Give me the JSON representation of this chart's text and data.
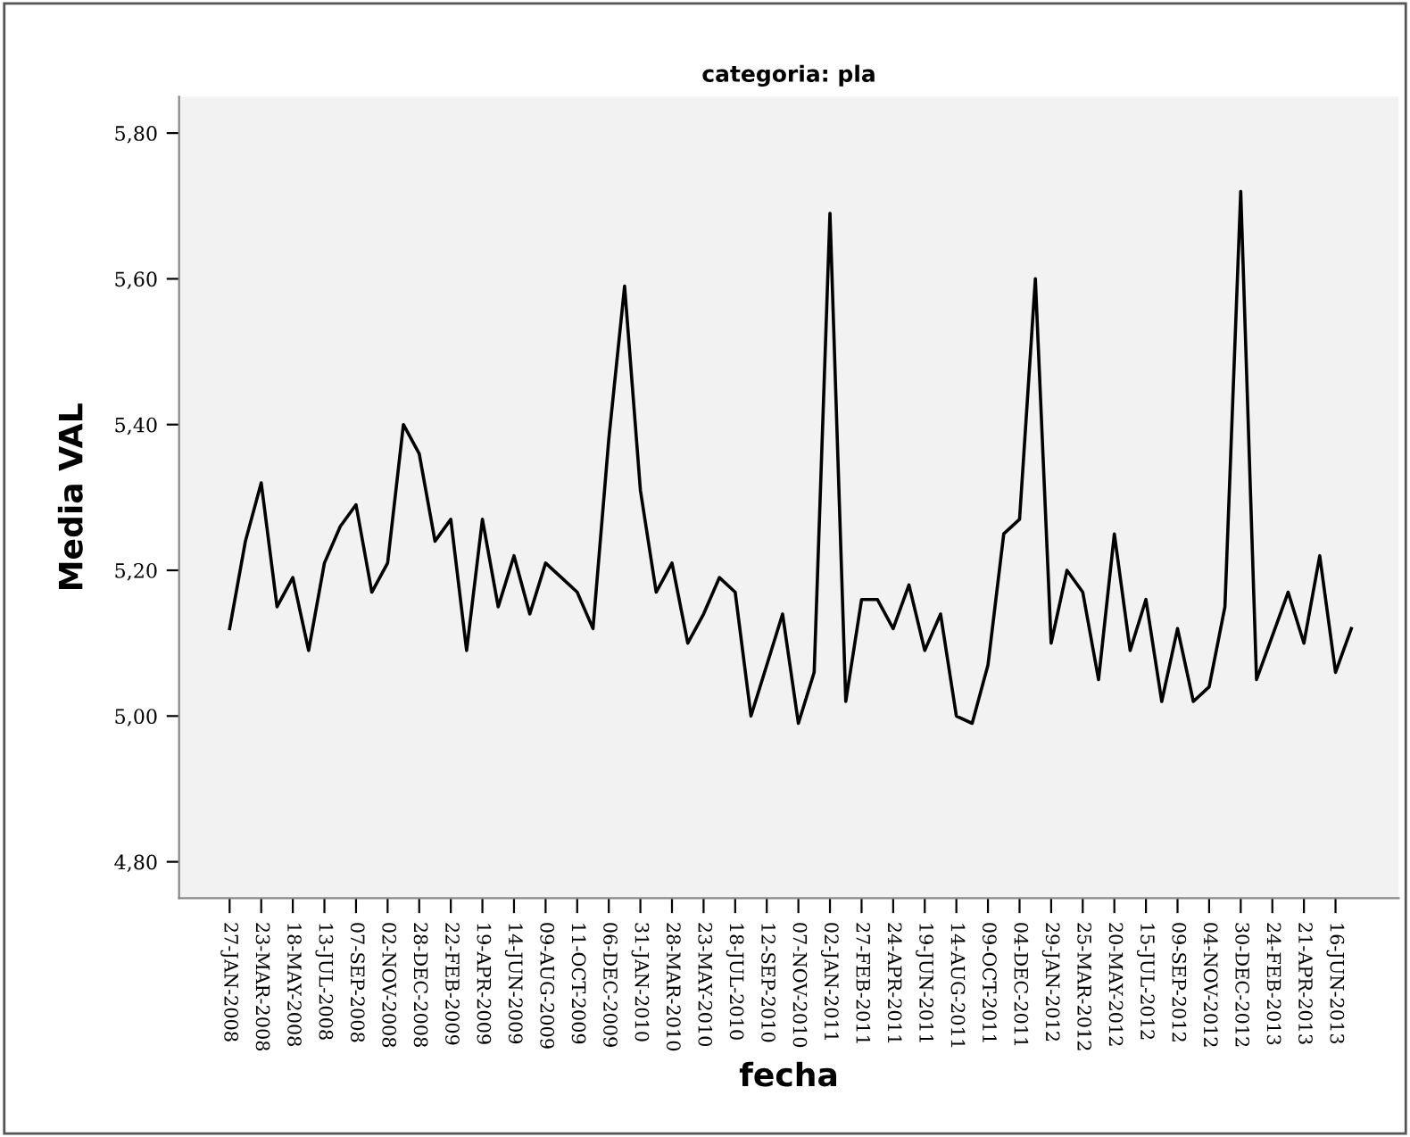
{
  "chart_data": {
    "type": "line",
    "title": "categoria: pla",
    "xlabel": "fecha",
    "ylabel": "Media VAL",
    "categories": [
      "27-JAN-2008",
      null,
      "23-MAR-2008",
      null,
      "18-MAY-2008",
      null,
      "13-JUL-2008",
      null,
      "07-SEP-2008",
      null,
      "02-NOV-2008",
      null,
      "28-DEC-2008",
      null,
      "22-FEB-2009",
      null,
      "19-APR-2009",
      null,
      "14-JUN-2009",
      null,
      "09-AUG-2009",
      null,
      "11-OCT-2009",
      null,
      "06-DEC-2009",
      null,
      "31-JAN-2010",
      null,
      "28-MAR-2010",
      null,
      "23-MAY-2010",
      null,
      "18-JUL-2010",
      null,
      "12-SEP-2010",
      null,
      "07-NOV-2010",
      null,
      "02-JAN-2011",
      null,
      "27-FEB-2011",
      null,
      "24-APR-2011",
      null,
      "19-JUN-2011",
      null,
      "14-AUG-2011",
      null,
      "09-OCT-2011",
      null,
      "04-DEC-2011",
      null,
      "29-JAN-2012",
      null,
      "25-MAR-2012",
      null,
      "20-MAY-2012",
      null,
      "15-JUL-2012",
      null,
      "09-SEP-2012",
      null,
      "04-NOV-2012",
      null,
      "30-DEC-2012",
      null,
      "24-FEB-2013",
      null,
      "21-APR-2013",
      null,
      "16-JUN-2013",
      null
    ],
    "series": [
      {
        "color": "#000000",
        "values": [
          5.12,
          5.24,
          5.32,
          5.15,
          5.19,
          5.09,
          5.21,
          5.26,
          5.29,
          5.17,
          5.21,
          5.4,
          5.36,
          5.24,
          5.27,
          5.09,
          5.27,
          5.15,
          5.22,
          5.14,
          5.21,
          5.19,
          5.17,
          5.12,
          5.38,
          5.59,
          5.31,
          5.17,
          5.21,
          5.1,
          5.14,
          5.19,
          5.17,
          5.0,
          5.07,
          5.14,
          4.99,
          5.06,
          5.69,
          5.02,
          5.16,
          5.16,
          5.12,
          5.18,
          5.09,
          5.14,
          5.0,
          4.99,
          5.07,
          5.25,
          5.27,
          5.6,
          5.1,
          5.2,
          5.17,
          5.05,
          5.25,
          5.09,
          5.16,
          5.02,
          5.12,
          5.02,
          5.04,
          5.15,
          5.72,
          5.05,
          5.11,
          5.17,
          5.1,
          5.22,
          5.06,
          5.12
        ]
      }
    ],
    "ylim": [
      4.75,
      5.85
    ],
    "yticks": [
      {
        "value": 4.8,
        "label": "4,80"
      },
      {
        "value": 5.0,
        "label": "5,00"
      },
      {
        "value": 5.2,
        "label": "5,20"
      },
      {
        "value": 5.4,
        "label": "5,40"
      },
      {
        "value": 5.6,
        "label": "5,60"
      },
      {
        "value": 5.8,
        "label": "5,80"
      }
    ],
    "grid": false,
    "legend": false,
    "marker": "none",
    "line_style": "solid"
  }
}
